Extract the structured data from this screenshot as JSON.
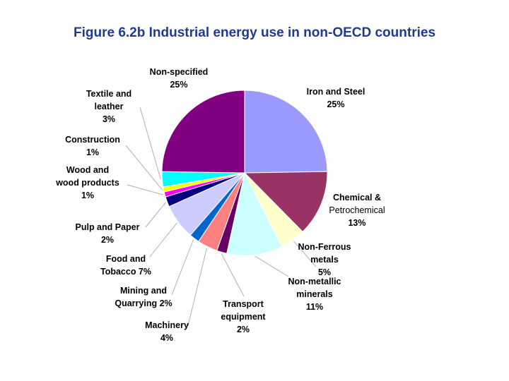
{
  "page": {
    "title": "Figure 6.2b Industrial energy use in non-OECD countries"
  },
  "chart_data": {
    "type": "pie",
    "title": "Figure 6.2b Industrial energy use in non-OECD countries",
    "slices": [
      {
        "name": "Iron and Steel",
        "value": 25,
        "label": [
          "Iron and Steel",
          "25%"
        ],
        "color": "#9a9aff"
      },
      {
        "name": "Chemical & Petrochemical",
        "value": 13,
        "label": [
          "Chemical &",
          "Petrochemical",
          "13%"
        ],
        "color": "#993366"
      },
      {
        "name": "Non-Ferrous metals",
        "value": 5,
        "label": [
          "Non-Ferrous",
          "metals",
          "5%"
        ],
        "color": "#ffffcc"
      },
      {
        "name": "Non-metallic minerals",
        "value": 11,
        "label": [
          "Non-metallic",
          "minerals",
          "11%"
        ],
        "color": "#ccffff"
      },
      {
        "name": "Transport equipment",
        "value": 2,
        "label": [
          "Transport",
          "equipment",
          "2%"
        ],
        "color": "#660066"
      },
      {
        "name": "Machinery",
        "value": 4,
        "label": [
          "Machinery",
          "4%"
        ],
        "color": "#ff8080"
      },
      {
        "name": "Mining and Quarrying",
        "value": 2,
        "label": [
          "Mining and",
          "Quarrying 2%"
        ],
        "color": "#0066cc"
      },
      {
        "name": "Food and Tobacco",
        "value": 7,
        "label": [
          "Food and",
          "Tobacco 7%"
        ],
        "color": "#ccccff"
      },
      {
        "name": "Pulp and Paper",
        "value": 2,
        "label": [
          "Pulp and Paper",
          "2%"
        ],
        "color": "#000080"
      },
      {
        "name": "Wood and wood products",
        "value": 1,
        "label": [
          "Wood and",
          "wood products",
          "1%"
        ],
        "color": "#ff00ff"
      },
      {
        "name": "Construction",
        "value": 1,
        "label": [
          "Construction",
          "1%"
        ],
        "color": "#ffff00"
      },
      {
        "name": "Textile and leather",
        "value": 3,
        "label": [
          "Textile and",
          "leather",
          "3%"
        ],
        "color": "#00ffff"
      },
      {
        "name": "Non-specified",
        "value": 25,
        "label": [
          "Non-specified",
          "25%"
        ],
        "color": "#800080"
      }
    ],
    "legend": "none (callout labels)"
  }
}
